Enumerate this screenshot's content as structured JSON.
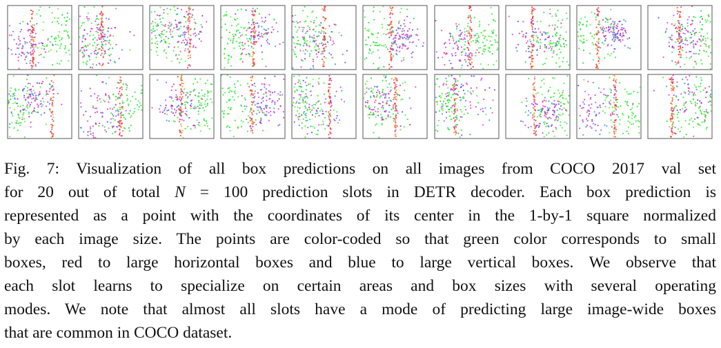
{
  "figure": {
    "caption": {
      "lines": [
        [
          "Fig. 7: Visualization of all box predictions on all images from COCO 2017 val set"
        ],
        [
          "for 20 out of total ",
          "N",
          " = 100 prediction slots in DETR decoder. Each box prediction is"
        ],
        [
          "represented as a point with the coordinates of its center in the 1-by-1 square normalized"
        ],
        [
          "by each image size. The points are color-coded so that green color corresponds to small"
        ],
        [
          "boxes, red to large horizontal boxes and blue to large vertical boxes. We observe that"
        ],
        [
          "each slot learns to specialize on certain areas and box sizes with several operating"
        ],
        [
          "modes. We note that almost all slots have a mode of predicting large image-wide boxes"
        ],
        [
          "that are common in COCO dataset."
        ]
      ]
    }
  }
}
